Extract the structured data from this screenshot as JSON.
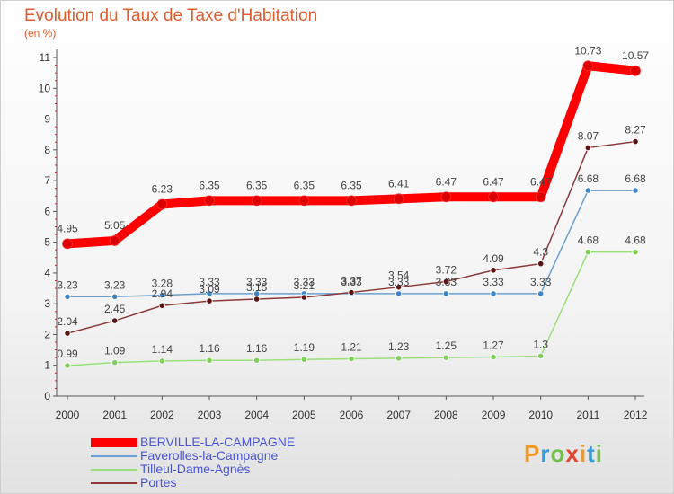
{
  "chart_data": {
    "type": "line",
    "title": "Evolution du Taux de Taxe d'Habitation",
    "subtitle": "(en %)",
    "x": [
      "2000",
      "2001",
      "2002",
      "2003",
      "2004",
      "2005",
      "2006",
      "2007",
      "2008",
      "2009",
      "2010",
      "2011",
      "2012"
    ],
    "ylim": [
      0,
      11
    ],
    "yticks": [
      0,
      1,
      2,
      3,
      4,
      5,
      6,
      7,
      8,
      9,
      10,
      11
    ],
    "grid": false,
    "legend_position": "bottom-left",
    "series": [
      {
        "name": "BERVILLE-LA-CAMPAGNE",
        "color": "#ff0000",
        "marker_color": "#dd0000",
        "values": [
          4.95,
          5.05,
          6.23,
          6.35,
          6.35,
          6.35,
          6.35,
          6.41,
          6.47,
          6.47,
          6.47,
          10.73,
          10.57
        ],
        "labels": [
          "4.95",
          "5.05",
          "6.23",
          "6.35",
          "6.35",
          "6.35",
          "6.35",
          "6.41",
          "6.47",
          "6.47",
          "6.47",
          "10.73",
          "10.57"
        ]
      },
      {
        "name": "Faverolles-la-Campagne",
        "color": "#6a9fd0",
        "marker_color": "#3d86c9",
        "values": [
          3.23,
          3.23,
          3.28,
          3.33,
          3.33,
          3.33,
          3.33,
          3.33,
          3.33,
          3.33,
          3.33,
          6.68,
          6.68
        ],
        "labels": [
          "3.23",
          "3.23",
          "3.28",
          "3.33",
          "3.33",
          "3.33",
          "3.33",
          "3.33",
          "3.33",
          "3.33",
          "3.33",
          "6.68",
          "6.68"
        ]
      },
      {
        "name": "Tilleul-Dame-Agnès",
        "color": "#99e07a",
        "marker_color": "#7fd05a",
        "values": [
          0.99,
          1.09,
          1.14,
          1.16,
          1.16,
          1.19,
          1.21,
          1.23,
          1.25,
          1.27,
          1.3,
          4.68,
          4.68
        ],
        "labels": [
          "0.99",
          "1.09",
          "1.14",
          "1.16",
          "1.16",
          "1.19",
          "1.21",
          "1.23",
          "1.25",
          "1.27",
          "1.3",
          "4.68",
          "4.68"
        ]
      },
      {
        "name": "Portes",
        "color": "#8b3a3a",
        "marker_color": "#5a1414",
        "values": [
          2.04,
          2.45,
          2.94,
          3.09,
          3.15,
          3.21,
          3.37,
          3.54,
          3.72,
          4.09,
          4.3,
          8.07,
          8.27
        ],
        "labels": [
          "2.04",
          "2.45",
          "2.94",
          "3.09",
          "3.15",
          "3.21",
          "3.37",
          "3.54",
          "3.72",
          "4.09",
          "4.3",
          "8.07",
          "8.27"
        ]
      }
    ]
  },
  "brand": {
    "text": "Proxiti",
    "colors": [
      "#f29a1f",
      "#3a9bd9",
      "#73c04a",
      "#e8462c",
      "#f29a1f",
      "#3a9bd9",
      "#73c04a"
    ]
  }
}
